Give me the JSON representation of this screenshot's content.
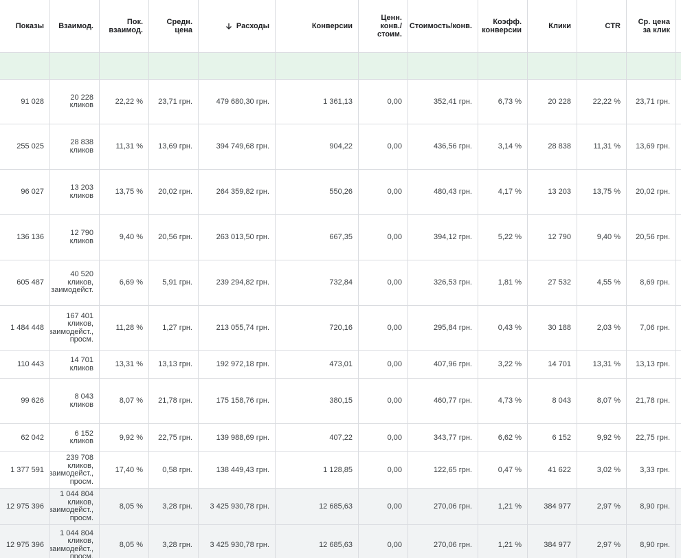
{
  "table": {
    "header": [
      [
        "Показы"
      ],
      [
        "Взаимод."
      ],
      [
        "Пок.",
        "взаимод."
      ],
      [
        "Средн.",
        "цена"
      ],
      [
        "Расходы"
      ],
      [
        "Конверсии"
      ],
      [
        "Ценн.",
        "конв./",
        "стоим."
      ],
      [
        "Стоимость/конв."
      ],
      [
        "Коэфф.",
        "конверсии"
      ],
      [
        "Клики"
      ],
      [
        "CTR"
      ],
      [
        "Ср. цена",
        "за клик"
      ]
    ],
    "rows": [
      [
        "91 028",
        [
          "20 228",
          "кликов"
        ],
        "22,22 %",
        "23,71 грн.",
        "479 680,30 грн.",
        "1 361,13",
        "0,00",
        "352,41 грн.",
        "6,73 %",
        "20 228",
        "22,22 %",
        "23,71 грн."
      ],
      [
        "255 025",
        [
          "28 838",
          "кликов"
        ],
        "11,31 %",
        "13,69 грн.",
        "394 749,68 грн.",
        "904,22",
        "0,00",
        "436,56 грн.",
        "3,14 %",
        "28 838",
        "11,31 %",
        "13,69 грн."
      ],
      [
        "96 027",
        [
          "13 203",
          "кликов"
        ],
        "13,75 %",
        "20,02 грн.",
        "264 359,82 грн.",
        "550,26",
        "0,00",
        "480,43 грн.",
        "4,17 %",
        "13 203",
        "13,75 %",
        "20,02 грн."
      ],
      [
        "136 136",
        [
          "12 790",
          "кликов"
        ],
        "9,40 %",
        "20,56 грн.",
        "263 013,50 грн.",
        "667,35",
        "0,00",
        "394,12 грн.",
        "5,22 %",
        "12 790",
        "9,40 %",
        "20,56 грн."
      ],
      [
        "605 487",
        [
          "40 520",
          "кликов,",
          "заимодейст."
        ],
        "6,69 %",
        "5,91 грн.",
        "239 294,82 грн.",
        "732,84",
        "0,00",
        "326,53 грн.",
        "1,81 %",
        "27 532",
        "4,55 %",
        "8,69 грн."
      ],
      [
        "1 484 448",
        [
          "167 401",
          "кликов,",
          "заимодейст.,",
          "просм."
        ],
        "11,28 %",
        "1,27 грн.",
        "213 055,74 грн.",
        "720,16",
        "0,00",
        "295,84 грн.",
        "0,43 %",
        "30 188",
        "2,03 %",
        "7,06 грн."
      ],
      [
        "110 443",
        [
          "14 701",
          "кликов"
        ],
        "13,31 %",
        "13,13 грн.",
        "192 972,18 грн.",
        "473,01",
        "0,00",
        "407,96 грн.",
        "3,22 %",
        "14 701",
        "13,31 %",
        "13,13 грн."
      ],
      [
        "99 626",
        [
          "8 043",
          "кликов"
        ],
        "8,07 %",
        "21,78 грн.",
        "175 158,76 грн.",
        "380,15",
        "0,00",
        "460,77 грн.",
        "4,73 %",
        "8 043",
        "8,07 %",
        "21,78 грн."
      ],
      [
        "62 042",
        [
          "6 152",
          "кликов"
        ],
        "9,92 %",
        "22,75 грн.",
        "139 988,69 грн.",
        "407,22",
        "0,00",
        "343,77 грн.",
        "6,62 %",
        "6 152",
        "9,92 %",
        "22,75 грн."
      ],
      [
        "1 377 591",
        [
          "239 708",
          "кликов,",
          "заимодейст.,",
          "просм."
        ],
        "17,40 %",
        "0,58 грн.",
        "138 449,43 грн.",
        "1 128,85",
        "0,00",
        "122,65 грн.",
        "0,47 %",
        "41 622",
        "3,02 %",
        "3,33 грн."
      ],
      [
        "12 975 396",
        [
          "1 044 804",
          "кликов,",
          "заимодейст.,",
          "просм."
        ],
        "8,05 %",
        "3,28 грн.",
        "3 425 930,78 грн.",
        "12 685,63",
        "0,00",
        "270,06 грн.",
        "1,21 %",
        "384 977",
        "2,97 %",
        "8,90 грн."
      ],
      [
        "12 975 396",
        [
          "1 044 804",
          "кликов,",
          "заимодейст.,",
          "просм."
        ],
        "8,05 %",
        "3,28 грн.",
        "3 425 930,78 грн.",
        "12 685,63",
        "0,00",
        "270,06 грн.",
        "1,21 %",
        "384 977",
        "2,97 %",
        "8,90 грн."
      ]
    ]
  }
}
